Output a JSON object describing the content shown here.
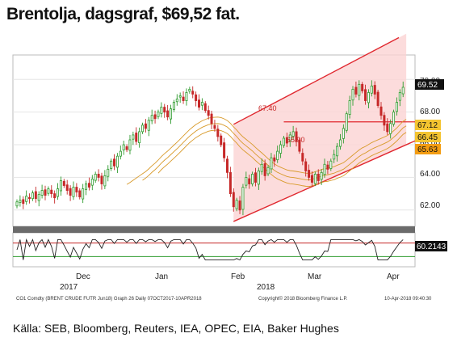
{
  "title": "Brentolja, dagsgraf, $69,52 fat.",
  "source": "Källa: SEB, Bloomberg, Reuters, IEA, OPEC, EIA, Baker Hughes",
  "footer": {
    "left": "CO1 Comdty (BRENT CRUDE FUTR  Jun18) Graph 26  Daily 07OCT2017-10APR2018",
    "center": "Copyright© 2018 Bloomberg Finance L.P.",
    "right": "10-Apr-2018 09:40:30"
  },
  "colors": {
    "up": "#2e9b2e",
    "down": "#c62828",
    "channel_fill": "#fbd3d3",
    "channel_line": "#e0282f",
    "ma": "#d89a2a",
    "osc": "#222222",
    "osc_upper": "#c62828",
    "osc_lower": "#2e9b2e",
    "tag_yellow": "#f4c430",
    "tag_orange": "#f39c12",
    "tag_black": "#111111"
  },
  "chart_data": {
    "type": "candlestick",
    "title": "Brentolja, dagsgraf, $69,52 fat.",
    "ylim": [
      61.0,
      71.5
    ],
    "y_ticks": [
      "62.00",
      "64.00",
      "66.00",
      "68.00",
      "70.00"
    ],
    "x_ticks": [
      "Dec",
      "Jan",
      "Feb",
      "Mar",
      "Apr"
    ],
    "year_labels": [
      "2017",
      "2018"
    ],
    "annotations": [
      "67.40",
      "65.90"
    ],
    "horizontal_line": 67.4,
    "value_tags": [
      {
        "text": "69.52",
        "value": 69.52,
        "style": "black"
      },
      {
        "text": "67.12",
        "value": 67.12,
        "style": "yellow"
      },
      {
        "text": "66.45",
        "value": 66.45,
        "style": "yellow"
      },
      {
        "text": "65.63",
        "value": 65.63,
        "style": "orange"
      }
    ],
    "channel": {
      "lower": [
        61.3,
        66.0
      ],
      "upper": [
        67.25,
        72.8
      ]
    },
    "oscillator": {
      "value_tag": "60.2143",
      "ylim": [
        0,
        100
      ],
      "upper": 70,
      "lower": 30
    }
  }
}
